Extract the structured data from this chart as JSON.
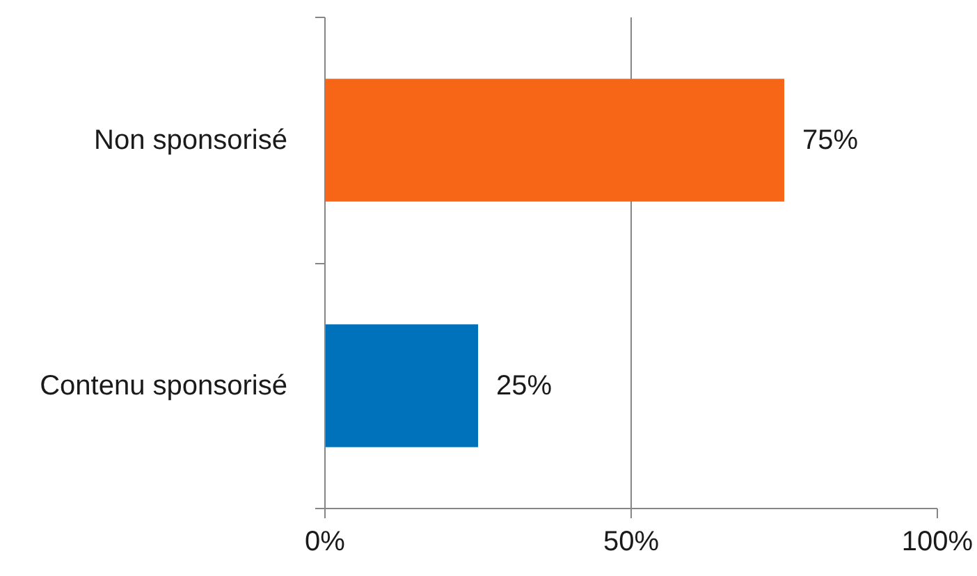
{
  "chart_data": {
    "type": "bar",
    "orientation": "horizontal",
    "categories": [
      "Non sponsorisé",
      "Contenu sponsorisé"
    ],
    "values": [
      75,
      25
    ],
    "colors": [
      "#f76516",
      "#0072bb"
    ],
    "value_labels": [
      "75%",
      "25%"
    ],
    "xlim": [
      0,
      100
    ],
    "xticks": [
      {
        "value": 0,
        "label": "0%"
      },
      {
        "value": 50,
        "label": "50%"
      },
      {
        "value": 100,
        "label": "100%"
      }
    ],
    "grid": "x"
  }
}
